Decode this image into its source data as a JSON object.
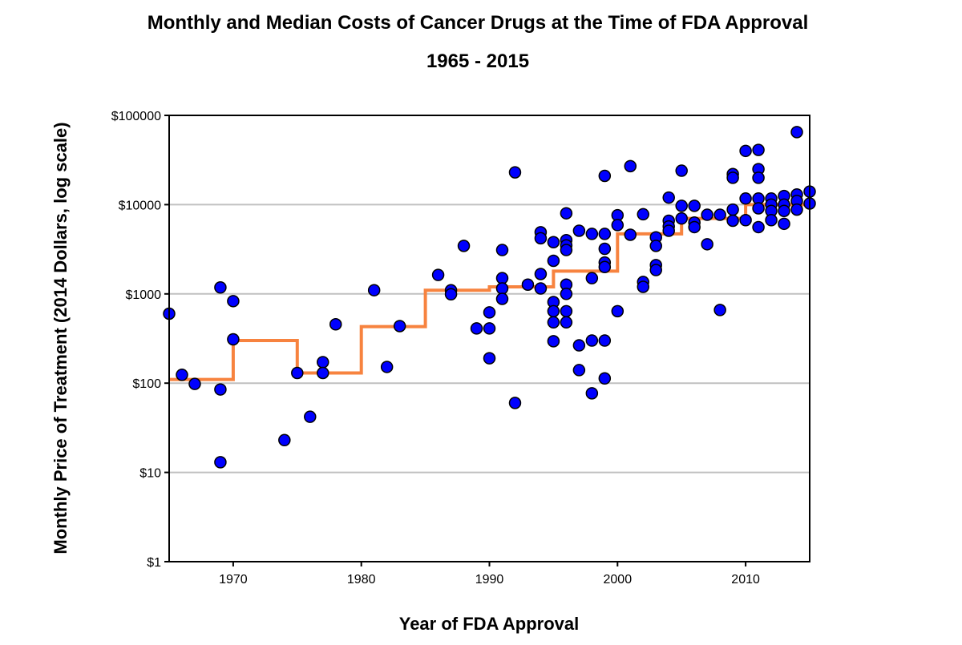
{
  "chart_data": {
    "type": "scatter",
    "title": "Monthly and Median Costs of Cancer Drugs at the Time of FDA Approval",
    "subtitle": "1965 - 2015",
    "xlabel": "Year of FDA Approval",
    "ylabel": "Monthly Price of Treatment (2014 Dollars, log scale)",
    "xlim": [
      1965,
      2015
    ],
    "ylim": [
      1,
      100000
    ],
    "yscale": "log",
    "grid": "horizontal",
    "x_ticks": [
      1970,
      1980,
      1990,
      2000,
      2010
    ],
    "y_ticks": [
      {
        "value": 1,
        "label": "$1"
      },
      {
        "value": 10,
        "label": "$10"
      },
      {
        "value": 100,
        "label": "$100"
      },
      {
        "value": 1000,
        "label": "$1000"
      },
      {
        "value": 10000,
        "label": "$10000"
      },
      {
        "value": 100000,
        "label": "$100000"
      }
    ],
    "colors": {
      "points": "#0000ff",
      "median": "#f7833f",
      "grid": "#c0c0c0"
    },
    "points": [
      [
        1965,
        600
      ],
      [
        1966,
        124
      ],
      [
        1967,
        98
      ],
      [
        1969,
        1180
      ],
      [
        1969,
        85
      ],
      [
        1969,
        13
      ],
      [
        1970,
        830
      ],
      [
        1970,
        310
      ],
      [
        1974,
        23
      ],
      [
        1975,
        130
      ],
      [
        1976,
        42
      ],
      [
        1977,
        172
      ],
      [
        1977,
        130
      ],
      [
        1978,
        456
      ],
      [
        1981,
        1100
      ],
      [
        1982,
        152
      ],
      [
        1983,
        436
      ],
      [
        1986,
        1630
      ],
      [
        1987,
        1100
      ],
      [
        1987,
        990
      ],
      [
        1988,
        3450
      ],
      [
        1989,
        410
      ],
      [
        1990,
        410
      ],
      [
        1990,
        620
      ],
      [
        1990,
        190
      ],
      [
        1991,
        3100
      ],
      [
        1991,
        1500
      ],
      [
        1991,
        1150
      ],
      [
        1991,
        880
      ],
      [
        1992,
        23000
      ],
      [
        1992,
        60
      ],
      [
        1993,
        1270
      ],
      [
        1994,
        4900
      ],
      [
        1994,
        4200
      ],
      [
        1994,
        1670
      ],
      [
        1994,
        1150
      ],
      [
        1995,
        3800
      ],
      [
        1995,
        2350
      ],
      [
        1995,
        810
      ],
      [
        1995,
        640
      ],
      [
        1995,
        480
      ],
      [
        1995,
        295
      ],
      [
        1996,
        8000
      ],
      [
        1996,
        4000
      ],
      [
        1996,
        3500
      ],
      [
        1996,
        3100
      ],
      [
        1996,
        1270
      ],
      [
        1996,
        1000
      ],
      [
        1996,
        640
      ],
      [
        1996,
        480
      ],
      [
        1997,
        5100
      ],
      [
        1997,
        265
      ],
      [
        1997,
        140
      ],
      [
        1998,
        4700
      ],
      [
        1998,
        1500
      ],
      [
        1998,
        300
      ],
      [
        1998,
        77
      ],
      [
        1999,
        21000
      ],
      [
        1999,
        4700
      ],
      [
        1999,
        3200
      ],
      [
        1999,
        2250
      ],
      [
        1999,
        2000
      ],
      [
        1999,
        300
      ],
      [
        1999,
        113
      ],
      [
        2000,
        7600
      ],
      [
        2000,
        5900
      ],
      [
        2000,
        640
      ],
      [
        2001,
        27000
      ],
      [
        2001,
        4600
      ],
      [
        2002,
        7800
      ],
      [
        2002,
        1360
      ],
      [
        2002,
        1200
      ],
      [
        2003,
        4300
      ],
      [
        2003,
        3450
      ],
      [
        2003,
        2100
      ],
      [
        2003,
        1850
      ],
      [
        2004,
        12000
      ],
      [
        2004,
        6600
      ],
      [
        2004,
        5700
      ],
      [
        2004,
        5100
      ],
      [
        2005,
        24000
      ],
      [
        2005,
        9700
      ],
      [
        2005,
        7000
      ],
      [
        2006,
        9700
      ],
      [
        2006,
        6300
      ],
      [
        2006,
        5600
      ],
      [
        2007,
        7700
      ],
      [
        2007,
        3600
      ],
      [
        2008,
        7700
      ],
      [
        2008,
        660
      ],
      [
        2009,
        22000
      ],
      [
        2009,
        20000
      ],
      [
        2009,
        8800
      ],
      [
        2009,
        6600
      ],
      [
        2010,
        40000
      ],
      [
        2010,
        11700
      ],
      [
        2010,
        6700
      ],
      [
        2011,
        41000
      ],
      [
        2011,
        25000
      ],
      [
        2011,
        20000
      ],
      [
        2011,
        11700
      ],
      [
        2011,
        9100
      ],
      [
        2011,
        5600
      ],
      [
        2012,
        11700
      ],
      [
        2012,
        10000
      ],
      [
        2012,
        8500
      ],
      [
        2012,
        6700
      ],
      [
        2013,
        12500
      ],
      [
        2013,
        10000
      ],
      [
        2013,
        8500
      ],
      [
        2013,
        6100
      ],
      [
        2014,
        65000
      ],
      [
        2014,
        13000
      ],
      [
        2014,
        11000
      ],
      [
        2014,
        8800
      ],
      [
        2015,
        14000
      ],
      [
        2015,
        10300
      ]
    ],
    "median_steps": [
      {
        "from": 1965,
        "to": 1970,
        "value": 110
      },
      {
        "from": 1970,
        "to": 1975,
        "value": 300
      },
      {
        "from": 1975,
        "to": 1980,
        "value": 130
      },
      {
        "from": 1980,
        "to": 1985,
        "value": 430
      },
      {
        "from": 1985,
        "to": 1990,
        "value": 1100
      },
      {
        "from": 1990,
        "to": 1995,
        "value": 1200
      },
      {
        "from": 1995,
        "to": 2000,
        "value": 1800
      },
      {
        "from": 2000,
        "to": 2005,
        "value": 4700
      },
      {
        "from": 2005,
        "to": 2010,
        "value": 7000
      },
      {
        "from": 2010,
        "to": 2015,
        "value": 10000
      }
    ]
  }
}
